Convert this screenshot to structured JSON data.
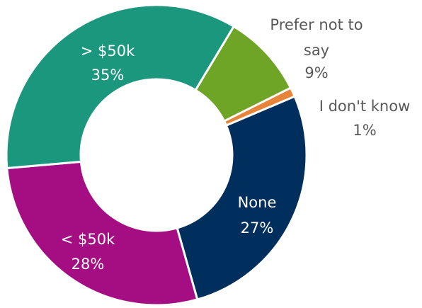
{
  "chart_data": {
    "type": "donut",
    "title": "",
    "slices": [
      {
        "name": "Prefer not to say",
        "label_lines": [
          "Prefer not to",
          "say"
        ],
        "pct_label": "9%",
        "value": 9,
        "color": "#6FA526"
      },
      {
        "name": "I don't know",
        "label_lines": [
          "I don't know"
        ],
        "pct_label": "1%",
        "value": 1,
        "color": "#E8843A"
      },
      {
        "name": "None",
        "label_lines": [
          "None"
        ],
        "pct_label": "27%",
        "value": 27,
        "color": "#002E5D"
      },
      {
        "name": "< $50k",
        "label_lines": [
          "< $50k"
        ],
        "pct_label": "28%",
        "value": 28,
        "color": "#A50E82"
      },
      {
        "name": "> $50k",
        "label_lines": [
          "> $50k"
        ],
        "pct_label": "35%",
        "value": 35,
        "color": "#1A977D"
      }
    ],
    "start_angle_deg": 31,
    "direction": "clockwise",
    "legend": "none"
  }
}
